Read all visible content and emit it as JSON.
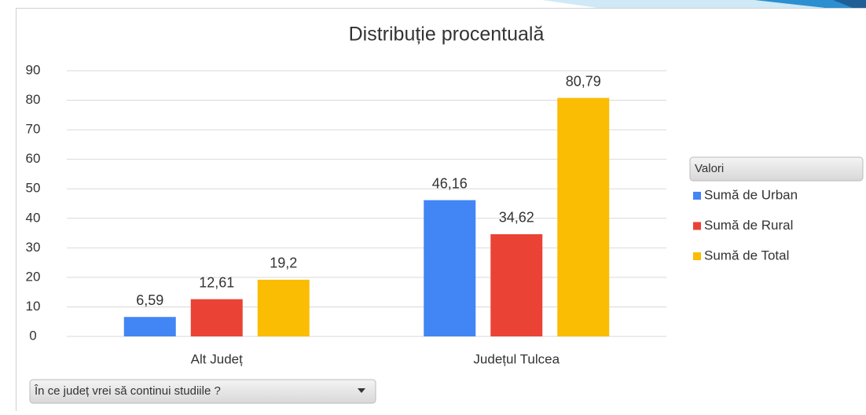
{
  "chart_data": {
    "type": "bar",
    "title": "Distribuție procentuală",
    "categories": [
      "Alt Județ",
      "Județul Tulcea"
    ],
    "series": [
      {
        "name": "Sumă de Urban",
        "color": "#4285f4",
        "values": [
          6.59,
          46.16
        ],
        "value_labels": [
          "6,59",
          "46,16"
        ]
      },
      {
        "name": "Sumă de Rural",
        "color": "#ea4335",
        "values": [
          12.61,
          34.62
        ],
        "value_labels": [
          "12,61",
          "34,62"
        ]
      },
      {
        "name": "Sumă de Total",
        "color": "#fbbc04",
        "values": [
          19.2,
          80.79
        ],
        "value_labels": [
          "19,2",
          "80,79"
        ]
      }
    ],
    "ylim": [
      0,
      90
    ],
    "yticks": [
      0,
      10,
      20,
      30,
      40,
      50,
      60,
      70,
      80,
      90
    ],
    "grid": true,
    "legend_title": "Valori",
    "legend_position": "right",
    "filter_label": "În ce județ vrei să continui studiile ?"
  }
}
